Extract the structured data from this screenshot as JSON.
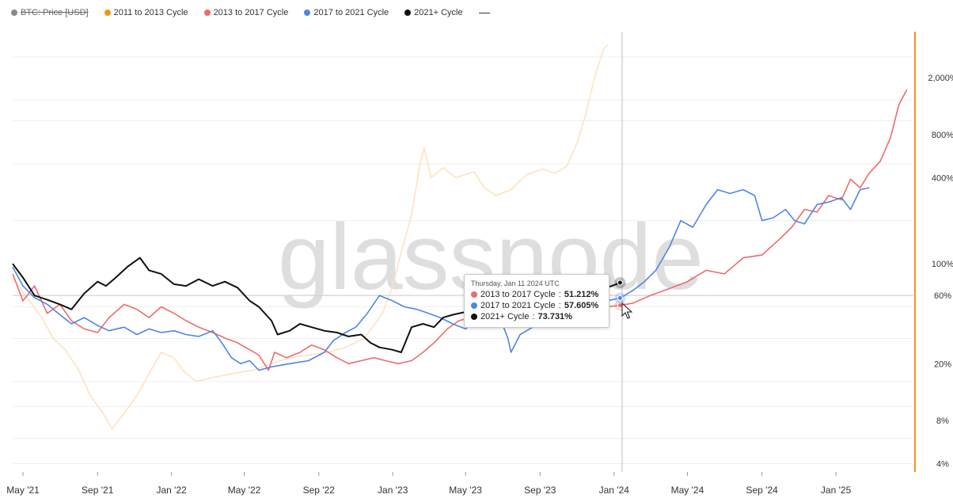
{
  "legend": {
    "items": [
      {
        "label": "BTC: Price [USD]",
        "color": "#888888",
        "disabled": true
      },
      {
        "label": "2011 to 2013 Cycle",
        "color": "#f7931a",
        "disabled": false
      },
      {
        "label": "2013 to 2017 Cycle",
        "color": "#ef6b6b",
        "disabled": false
      },
      {
        "label": "2017 to 2021 Cycle",
        "color": "#4e86e4",
        "disabled": false
      },
      {
        "label": "2021+ Cycle",
        "color": "#111111",
        "disabled": false
      }
    ]
  },
  "watermark": "glassnode",
  "tooltip": {
    "date": "Thursday, Jan 11 2024 UTC",
    "rows": [
      {
        "series": "2013 to 2017 Cycle",
        "value": "51.212%",
        "color": "#ef6b6b"
      },
      {
        "series": "2017 to 2021 Cycle",
        "value": "57.605%",
        "color": "#4e86e4"
      },
      {
        "series": "2021+ Cycle",
        "value": "73.731%",
        "color": "#111111"
      }
    ]
  },
  "colors": {
    "cycle_2011": "#ffe2bf",
    "cycle_2013": "#ef6b6b",
    "cycle_2017": "#4e86e4",
    "cycle_2021": "#111111",
    "right_axis": "#f7931a"
  },
  "chart_data": {
    "type": "line",
    "y_scale": "log",
    "ylim": [
      3.5,
      4200
    ],
    "y_ticks": [
      {
        "value": 2000,
        "label": "2,000%"
      },
      {
        "value": 800,
        "label": "800%"
      },
      {
        "value": 400,
        "label": "400%"
      },
      {
        "value": 100,
        "label": "100%"
      },
      {
        "value": 60,
        "label": "60%"
      },
      {
        "value": 20,
        "label": "20%"
      },
      {
        "value": 8,
        "label": "8%"
      },
      {
        "value": 4,
        "label": "4%"
      }
    ],
    "x_ticks": [
      "May '21",
      "Sep '21",
      "Jan '22",
      "May '22",
      "Sep '22",
      "Jan '23",
      "May '23",
      "Sep '23",
      "Jan '24",
      "May '24",
      "Sep '24",
      "Jan '25"
    ],
    "x_range": [
      "2021-04-14",
      "2025-05-01"
    ],
    "series": [
      {
        "name": "2011 to 2013 Cycle",
        "color": "#ffe2bf",
        "points": [
          [
            "2021-04-14",
            80
          ],
          [
            "2021-05-05",
            60
          ],
          [
            "2021-06-01",
            42
          ],
          [
            "2021-06-20",
            30
          ],
          [
            "2021-07-10",
            25
          ],
          [
            "2021-08-01",
            18
          ],
          [
            "2021-08-20",
            12
          ],
          [
            "2021-09-10",
            9
          ],
          [
            "2021-09-25",
            7
          ],
          [
            "2021-10-15",
            9
          ],
          [
            "2021-11-05",
            12
          ],
          [
            "2021-11-25",
            17
          ],
          [
            "2021-12-15",
            24
          ],
          [
            "2022-01-05",
            22
          ],
          [
            "2022-01-20",
            18
          ],
          [
            "2022-02-10",
            15
          ],
          [
            "2022-03-10",
            16
          ],
          [
            "2022-04-10",
            17
          ],
          [
            "2022-05-15",
            18
          ],
          [
            "2022-06-15",
            20
          ],
          [
            "2022-07-15",
            22
          ],
          [
            "2022-08-15",
            23
          ],
          [
            "2022-09-15",
            24
          ],
          [
            "2022-10-15",
            26
          ],
          [
            "2022-11-15",
            30
          ],
          [
            "2022-12-15",
            45
          ],
          [
            "2023-01-01",
            70
          ],
          [
            "2023-01-15",
            120
          ],
          [
            "2023-02-01",
            220
          ],
          [
            "2023-02-15",
            500
          ],
          [
            "2023-02-22",
            650
          ],
          [
            "2023-03-05",
            400
          ],
          [
            "2023-03-25",
            470
          ],
          [
            "2023-04-15",
            400
          ],
          [
            "2023-05-15",
            440
          ],
          [
            "2023-06-01",
            340
          ],
          [
            "2023-06-20",
            300
          ],
          [
            "2023-07-15",
            330
          ],
          [
            "2023-08-10",
            420
          ],
          [
            "2023-09-05",
            460
          ],
          [
            "2023-09-25",
            430
          ],
          [
            "2023-10-15",
            480
          ],
          [
            "2023-11-01",
            700
          ],
          [
            "2023-11-15",
            1100
          ],
          [
            "2023-12-01",
            2100
          ],
          [
            "2023-12-15",
            3200
          ],
          [
            "2023-12-22",
            3400
          ]
        ]
      },
      {
        "name": "2013 to 2017 Cycle",
        "color": "#ef6b6b",
        "points": [
          [
            "2021-04-14",
            85
          ],
          [
            "2021-05-01",
            55
          ],
          [
            "2021-05-20",
            70
          ],
          [
            "2021-06-10",
            45
          ],
          [
            "2021-07-01",
            52
          ],
          [
            "2021-07-20",
            40
          ],
          [
            "2021-08-10",
            35
          ],
          [
            "2021-09-01",
            33
          ],
          [
            "2021-09-20",
            42
          ],
          [
            "2021-10-15",
            52
          ],
          [
            "2021-11-05",
            48
          ],
          [
            "2021-11-25",
            42
          ],
          [
            "2021-12-15",
            50
          ],
          [
            "2022-01-05",
            45
          ],
          [
            "2022-01-25",
            40
          ],
          [
            "2022-02-15",
            36
          ],
          [
            "2022-03-10",
            33
          ],
          [
            "2022-04-01",
            30
          ],
          [
            "2022-04-20",
            28
          ],
          [
            "2022-05-10",
            25
          ],
          [
            "2022-05-25",
            23
          ],
          [
            "2022-06-10",
            18
          ],
          [
            "2022-06-20",
            24
          ],
          [
            "2022-07-10",
            22
          ],
          [
            "2022-08-01",
            24
          ],
          [
            "2022-08-20",
            27
          ],
          [
            "2022-09-10",
            25
          ],
          [
            "2022-10-01",
            22
          ],
          [
            "2022-10-20",
            20
          ],
          [
            "2022-11-10",
            21
          ],
          [
            "2022-12-01",
            22
          ],
          [
            "2022-12-20",
            21
          ],
          [
            "2023-01-10",
            20
          ],
          [
            "2023-02-01",
            21
          ],
          [
            "2023-02-20",
            24
          ],
          [
            "2023-03-10",
            28
          ],
          [
            "2023-04-01",
            35
          ],
          [
            "2023-04-20",
            40
          ],
          [
            "2023-05-10",
            42
          ],
          [
            "2023-06-01",
            45
          ],
          [
            "2023-06-20",
            44
          ],
          [
            "2023-07-10",
            42
          ],
          [
            "2023-08-01",
            44
          ],
          [
            "2023-08-20",
            46
          ],
          [
            "2023-09-10",
            45
          ],
          [
            "2023-10-01",
            46
          ],
          [
            "2023-10-20",
            47
          ],
          [
            "2023-11-10",
            48
          ],
          [
            "2023-12-01",
            49
          ],
          [
            "2023-12-20",
            50
          ],
          [
            "2024-01-11",
            51.2
          ],
          [
            "2024-02-01",
            53
          ],
          [
            "2024-03-01",
            60
          ],
          [
            "2024-04-01",
            67
          ],
          [
            "2024-05-01",
            75
          ],
          [
            "2024-06-01",
            90
          ],
          [
            "2024-07-01",
            85
          ],
          [
            "2024-08-01",
            110
          ],
          [
            "2024-09-01",
            115
          ],
          [
            "2024-10-01",
            150
          ],
          [
            "2024-10-20",
            180
          ],
          [
            "2024-11-10",
            240
          ],
          [
            "2024-12-01",
            230
          ],
          [
            "2024-12-20",
            300
          ],
          [
            "2025-01-10",
            280
          ],
          [
            "2025-01-25",
            390
          ],
          [
            "2025-02-10",
            340
          ],
          [
            "2025-02-25",
            430
          ],
          [
            "2025-03-15",
            520
          ],
          [
            "2025-04-01",
            760
          ],
          [
            "2025-04-15",
            1300
          ],
          [
            "2025-04-28",
            1650
          ]
        ]
      },
      {
        "name": "2017 to 2021 Cycle",
        "color": "#4e86e4",
        "points": [
          [
            "2021-04-14",
            95
          ],
          [
            "2021-05-01",
            70
          ],
          [
            "2021-05-20",
            58
          ],
          [
            "2021-06-10",
            52
          ],
          [
            "2021-07-01",
            44
          ],
          [
            "2021-07-20",
            38
          ],
          [
            "2021-08-10",
            42
          ],
          [
            "2021-09-01",
            37
          ],
          [
            "2021-09-20",
            34
          ],
          [
            "2021-10-15",
            36
          ],
          [
            "2021-11-05",
            32
          ],
          [
            "2021-11-25",
            35
          ],
          [
            "2021-12-15",
            33
          ],
          [
            "2022-01-05",
            34
          ],
          [
            "2022-01-25",
            32
          ],
          [
            "2022-02-15",
            31
          ],
          [
            "2022-03-10",
            34
          ],
          [
            "2022-03-25",
            28
          ],
          [
            "2022-04-10",
            22
          ],
          [
            "2022-04-25",
            20
          ],
          [
            "2022-05-10",
            21
          ],
          [
            "2022-05-25",
            18
          ],
          [
            "2022-06-15",
            19
          ],
          [
            "2022-07-15",
            20
          ],
          [
            "2022-08-15",
            21
          ],
          [
            "2022-09-10",
            24
          ],
          [
            "2022-09-25",
            29
          ],
          [
            "2022-10-15",
            33
          ],
          [
            "2022-11-01",
            36
          ],
          [
            "2022-11-20",
            45
          ],
          [
            "2022-12-10",
            60
          ],
          [
            "2023-01-01",
            55
          ],
          [
            "2023-01-20",
            50
          ],
          [
            "2023-02-10",
            48
          ],
          [
            "2023-03-01",
            45
          ],
          [
            "2023-03-20",
            42
          ],
          [
            "2023-04-10",
            38
          ],
          [
            "2023-05-01",
            35
          ],
          [
            "2023-05-20",
            40
          ],
          [
            "2023-06-10",
            42
          ],
          [
            "2023-06-25",
            44
          ],
          [
            "2023-07-10",
            30
          ],
          [
            "2023-07-15",
            24
          ],
          [
            "2023-07-30",
            32
          ],
          [
            "2023-08-20",
            36
          ],
          [
            "2023-09-10",
            38
          ],
          [
            "2023-10-01",
            42
          ],
          [
            "2023-10-20",
            45
          ],
          [
            "2023-11-10",
            48
          ],
          [
            "2023-12-01",
            52
          ],
          [
            "2023-12-20",
            55
          ],
          [
            "2024-01-11",
            57.6
          ],
          [
            "2024-02-01",
            65
          ],
          [
            "2024-02-20",
            75
          ],
          [
            "2024-03-10",
            90
          ],
          [
            "2024-04-01",
            130
          ],
          [
            "2024-04-20",
            200
          ],
          [
            "2024-05-10",
            180
          ],
          [
            "2024-06-01",
            260
          ],
          [
            "2024-06-20",
            330
          ],
          [
            "2024-07-10",
            310
          ],
          [
            "2024-08-01",
            330
          ],
          [
            "2024-08-20",
            300
          ],
          [
            "2024-09-01",
            200
          ],
          [
            "2024-09-20",
            210
          ],
          [
            "2024-10-10",
            240
          ],
          [
            "2024-10-25",
            200
          ],
          [
            "2024-11-10",
            190
          ],
          [
            "2024-12-01",
            260
          ],
          [
            "2024-12-20",
            270
          ],
          [
            "2025-01-10",
            290
          ],
          [
            "2025-01-25",
            240
          ],
          [
            "2025-02-10",
            330
          ],
          [
            "2025-02-25",
            340
          ]
        ]
      },
      {
        "name": "2021+ Cycle",
        "color": "#111111",
        "points": [
          [
            "2021-04-14",
            100
          ],
          [
            "2021-05-01",
            80
          ],
          [
            "2021-05-20",
            60
          ],
          [
            "2021-06-10",
            56
          ],
          [
            "2021-07-01",
            52
          ],
          [
            "2021-07-20",
            48
          ],
          [
            "2021-08-10",
            62
          ],
          [
            "2021-09-01",
            75
          ],
          [
            "2021-09-15",
            70
          ],
          [
            "2021-10-01",
            80
          ],
          [
            "2021-10-20",
            95
          ],
          [
            "2021-11-10",
            110
          ],
          [
            "2021-11-25",
            90
          ],
          [
            "2021-12-15",
            85
          ],
          [
            "2022-01-05",
            72
          ],
          [
            "2022-01-25",
            70
          ],
          [
            "2022-02-15",
            78
          ],
          [
            "2022-03-10",
            70
          ],
          [
            "2022-03-30",
            75
          ],
          [
            "2022-04-20",
            68
          ],
          [
            "2022-05-10",
            55
          ],
          [
            "2022-05-25",
            50
          ],
          [
            "2022-06-15",
            40
          ],
          [
            "2022-06-25",
            32
          ],
          [
            "2022-07-15",
            34
          ],
          [
            "2022-08-01",
            38
          ],
          [
            "2022-08-20",
            36
          ],
          [
            "2022-09-10",
            34
          ],
          [
            "2022-10-01",
            33
          ],
          [
            "2022-10-20",
            31
          ],
          [
            "2022-11-10",
            32
          ],
          [
            "2022-11-25",
            28
          ],
          [
            "2022-12-10",
            26
          ],
          [
            "2023-01-01",
            25
          ],
          [
            "2023-01-15",
            24
          ],
          [
            "2023-02-01",
            36
          ],
          [
            "2023-02-20",
            38
          ],
          [
            "2023-03-10",
            36
          ],
          [
            "2023-03-25",
            42
          ],
          [
            "2023-04-10",
            44
          ],
          [
            "2023-05-01",
            46
          ],
          [
            "2023-05-20",
            43
          ],
          [
            "2023-06-10",
            47
          ],
          [
            "2023-06-25",
            48
          ],
          [
            "2023-07-15",
            46
          ],
          [
            "2023-08-10",
            44
          ],
          [
            "2023-08-20",
            42
          ],
          [
            "2023-09-10",
            43
          ],
          [
            "2023-10-01",
            45
          ],
          [
            "2023-10-20",
            52
          ],
          [
            "2023-11-10",
            58
          ],
          [
            "2023-12-01",
            62
          ],
          [
            "2023-12-20",
            68
          ],
          [
            "2024-01-05",
            72
          ],
          [
            "2024-01-11",
            73.7
          ]
        ]
      }
    ]
  }
}
